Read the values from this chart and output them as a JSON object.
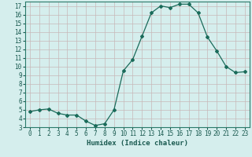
{
  "x": [
    0,
    1,
    2,
    3,
    4,
    5,
    6,
    7,
    8,
    9,
    10,
    11,
    12,
    13,
    14,
    15,
    16,
    17,
    18,
    19,
    20,
    21,
    22,
    23
  ],
  "y": [
    4.8,
    5.0,
    5.1,
    4.6,
    4.4,
    4.4,
    3.7,
    3.2,
    3.4,
    5.0,
    9.5,
    10.8,
    13.5,
    16.2,
    17.0,
    16.8,
    17.2,
    17.2,
    16.2,
    13.4,
    11.8,
    10.0,
    9.3,
    9.4
  ],
  "line_color": "#1a6b5a",
  "marker": "D",
  "markersize": 2.0,
  "bg_color": "#d5eeed",
  "grid_color_major": "#c8b8b8",
  "grid_color_minor": "#c8b8b8",
  "xlabel": "Humidex (Indice chaleur)",
  "ylim": [
    3,
    17.5
  ],
  "xlim": [
    -0.5,
    23.5
  ],
  "yticks": [
    3,
    4,
    5,
    6,
    7,
    8,
    9,
    10,
    11,
    12,
    13,
    14,
    15,
    16,
    17
  ],
  "xticks": [
    0,
    1,
    2,
    3,
    4,
    5,
    6,
    7,
    8,
    9,
    10,
    11,
    12,
    13,
    14,
    15,
    16,
    17,
    18,
    19,
    20,
    21,
    22,
    23
  ],
  "xlabel_fontsize": 6.5,
  "tick_fontsize": 5.5,
  "linewidth": 0.9
}
